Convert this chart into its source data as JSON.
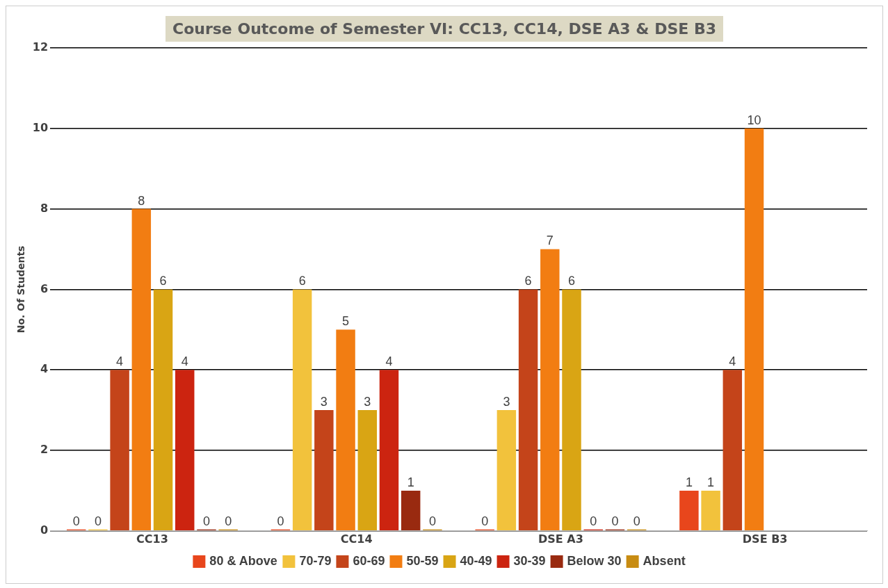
{
  "chart_data": {
    "type": "bar",
    "title": "Course Outcome of Semester VI: CC13, CC14, DSE A3 & DSE B3",
    "ylabel": "No. Of Students",
    "categories": [
      "CC13",
      "CC14",
      "DSE A3",
      "DSE B3"
    ],
    "series": [
      {
        "name": "80 & Above",
        "color": "#e8461c",
        "values": [
          0,
          0,
          0,
          1
        ]
      },
      {
        "name": "70-79",
        "color": "#f2c23c",
        "values": [
          0,
          6,
          3,
          1
        ]
      },
      {
        "name": "60-69",
        "color": "#c4441a",
        "values": [
          4,
          3,
          6,
          4
        ]
      },
      {
        "name": "50-59",
        "color": "#f27d12",
        "values": [
          8,
          5,
          7,
          10
        ]
      },
      {
        "name": "40-49",
        "color": "#d9a514",
        "values": [
          6,
          3,
          6,
          null
        ]
      },
      {
        "name": "30-39",
        "color": "#cc2410",
        "values": [
          4,
          4,
          0,
          null
        ]
      },
      {
        "name": "Below 30",
        "color": "#992a10",
        "values": [
          0,
          1,
          0,
          null
        ]
      },
      {
        "name": "Absent",
        "color": "#c88c12",
        "values": [
          0,
          0,
          0,
          null
        ]
      }
    ],
    "ylim": [
      0,
      12
    ],
    "yticks": [
      0,
      2,
      4,
      6,
      8,
      10,
      12
    ],
    "grid": "y",
    "legend": "bottom",
    "data_labels": true
  }
}
